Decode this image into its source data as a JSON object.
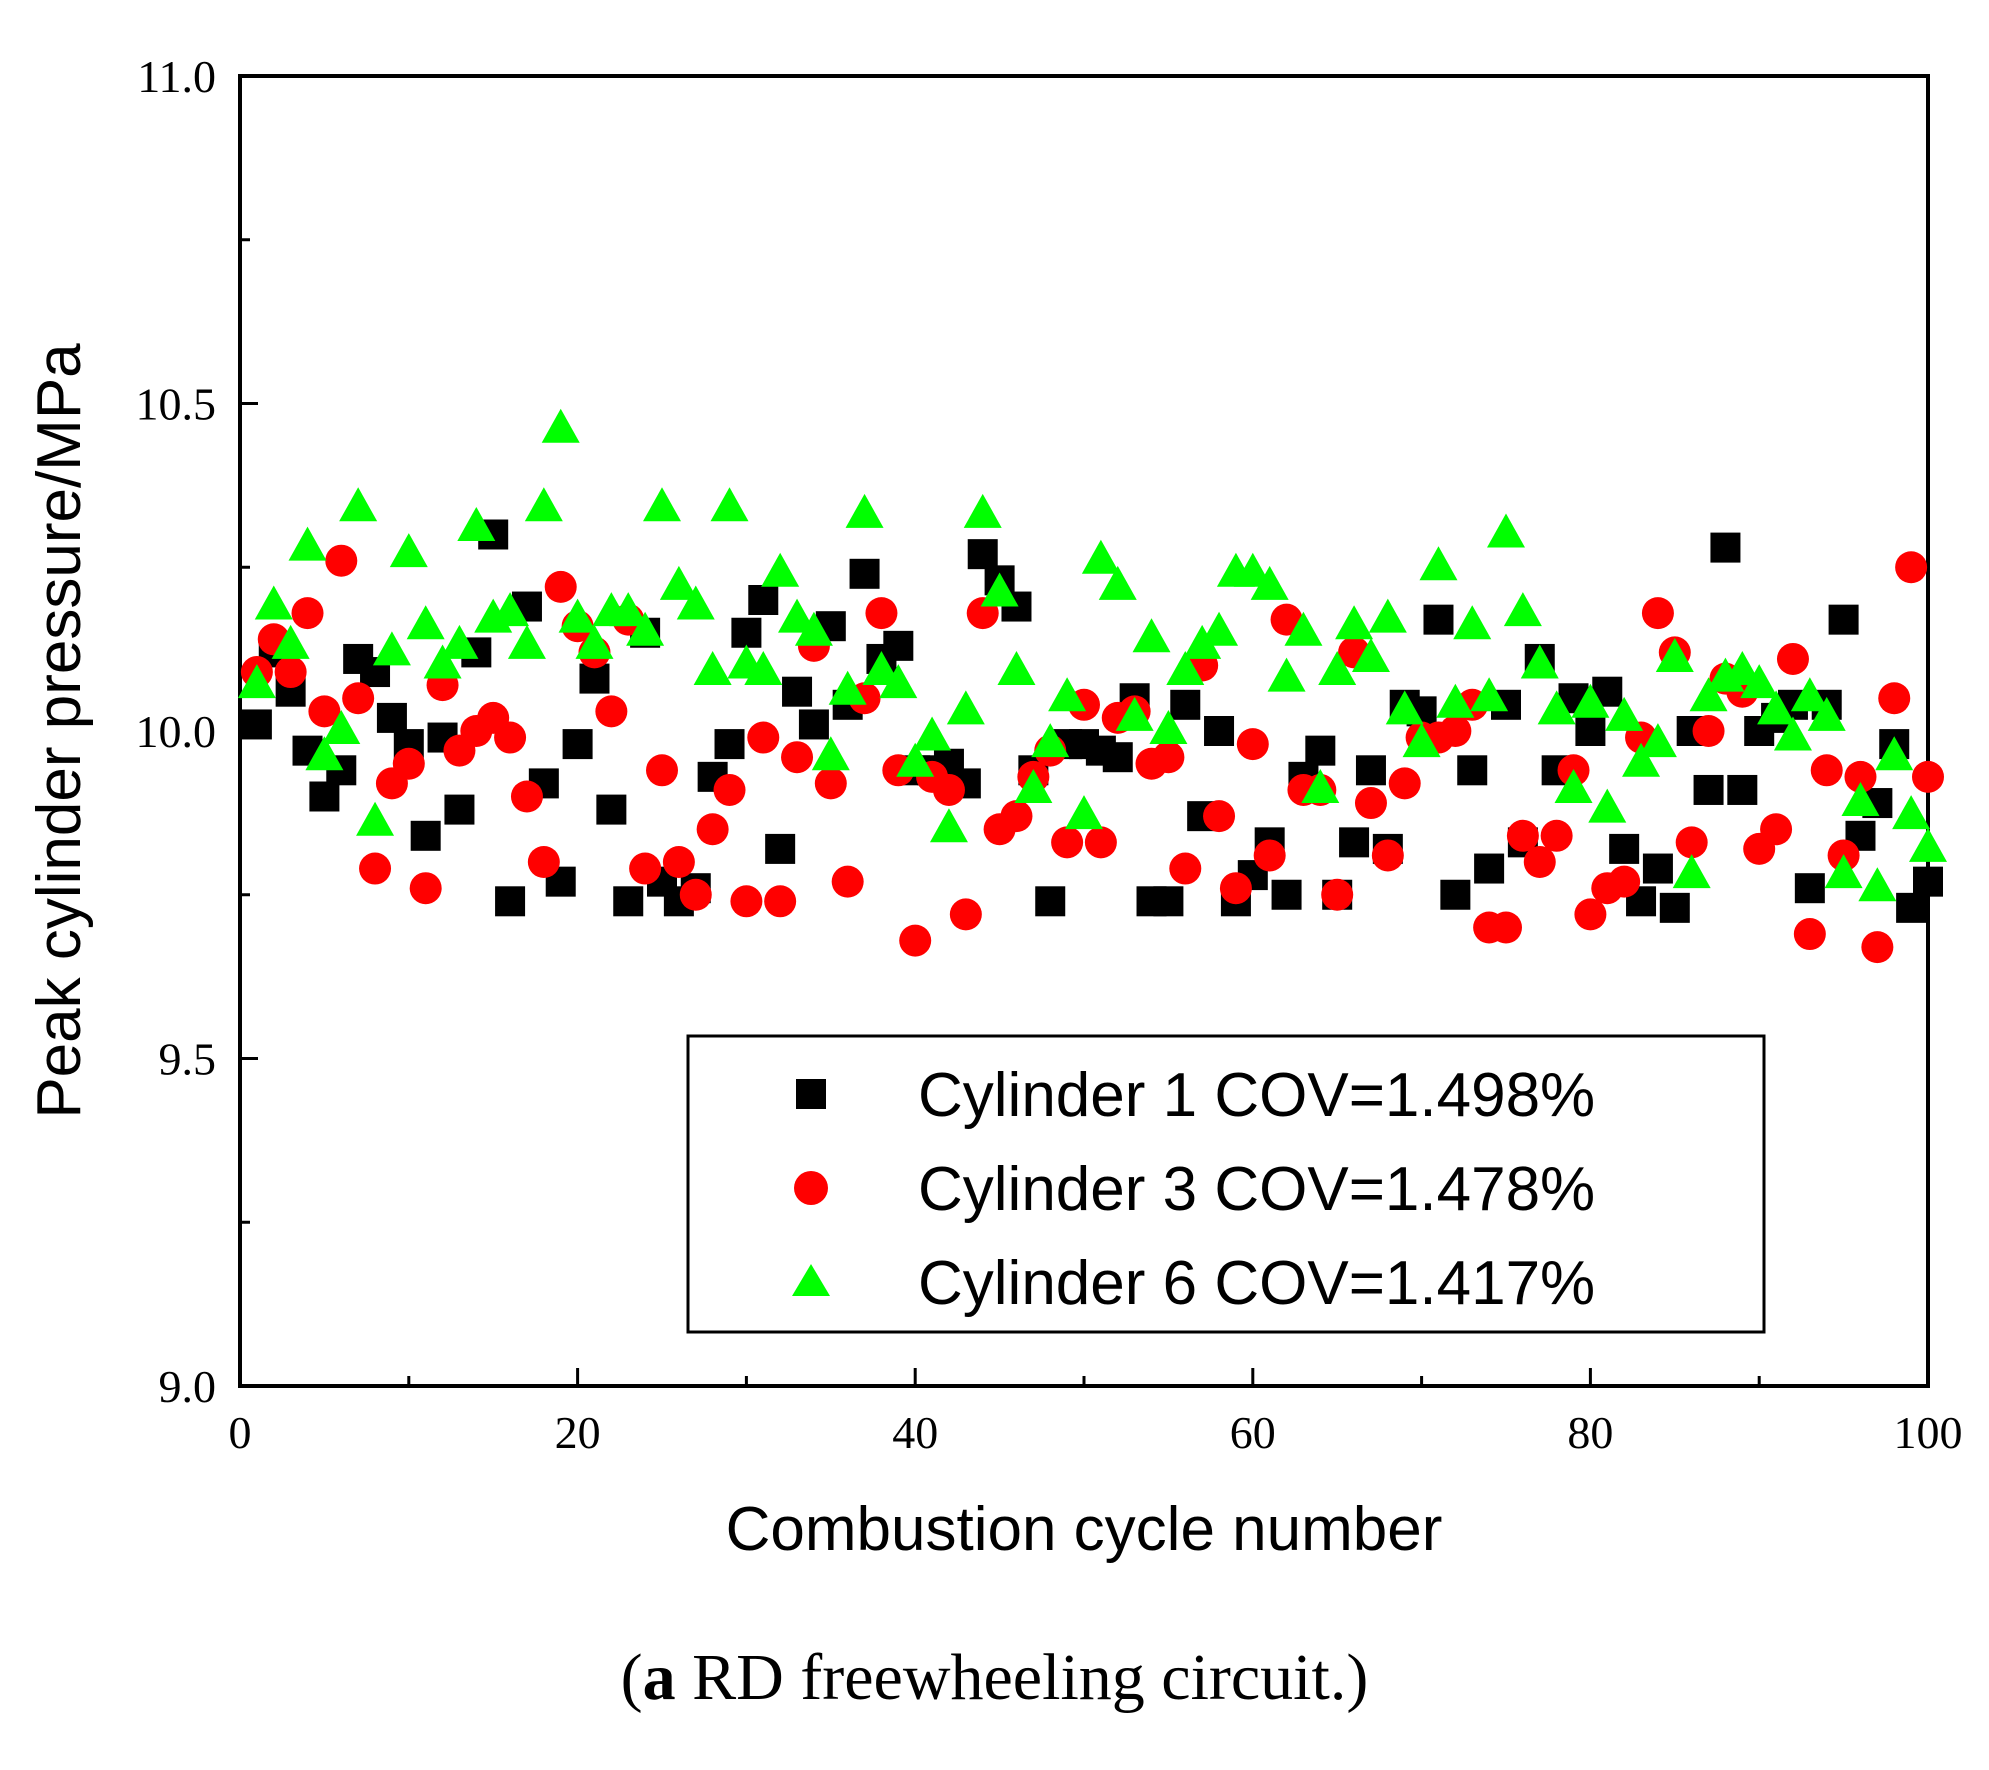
{
  "chart_data": {
    "type": "scatter",
    "title": "",
    "xlabel": "Combustion cycle number",
    "ylabel": "Peak cylinder pressure/MPa",
    "xlim": [
      0,
      100
    ],
    "ylim": [
      9.0,
      11.0
    ],
    "xticks": [
      0,
      20,
      40,
      60,
      80,
      100
    ],
    "xtick_labels": [
      "0",
      "20",
      "40",
      "60",
      "80",
      "100"
    ],
    "yticks": [
      9.0,
      9.5,
      10.0,
      10.5,
      11.0
    ],
    "ytick_labels": [
      "9.0",
      "9.5",
      "10.0",
      "10.5",
      "11.0"
    ],
    "grid": false,
    "legend_position": "bottom-right",
    "series": [
      {
        "name": "Cylinder 1 COV=1.498%",
        "marker": "square",
        "color": "#000000",
        "x": [
          1,
          2,
          3,
          4,
          5,
          6,
          7,
          8,
          9,
          10,
          11,
          12,
          13,
          14,
          15,
          16,
          17,
          18,
          19,
          20,
          21,
          22,
          23,
          24,
          25,
          26,
          27,
          28,
          29,
          30,
          31,
          32,
          33,
          34,
          35,
          36,
          37,
          38,
          39,
          40,
          41,
          42,
          43,
          44,
          45,
          46,
          47,
          48,
          49,
          50,
          51,
          52,
          53,
          54,
          55,
          56,
          57,
          58,
          59,
          60,
          61,
          62,
          63,
          64,
          65,
          66,
          67,
          68,
          69,
          70,
          71,
          72,
          73,
          74,
          75,
          76,
          77,
          78,
          79,
          80,
          81,
          82,
          83,
          84,
          85,
          86,
          87,
          88,
          89,
          90,
          91,
          92,
          93,
          94,
          95,
          96,
          97,
          98,
          99,
          100
        ],
        "y": [
          10.01,
          10.12,
          10.06,
          9.97,
          9.9,
          9.94,
          10.11,
          10.09,
          10.02,
          9.98,
          9.84,
          9.99,
          9.88,
          10.12,
          10.3,
          9.74,
          10.19,
          9.92,
          9.77,
          9.98,
          10.08,
          9.88,
          9.74,
          10.15,
          9.77,
          9.74,
          9.76,
          9.93,
          9.98,
          10.15,
          10.2,
          9.82,
          10.06,
          10.01,
          10.16,
          10.04,
          10.24,
          10.11,
          10.13,
          9.94,
          9.94,
          9.95,
          9.92,
          10.27,
          10.23,
          10.19,
          9.94,
          9.74,
          9.98,
          9.98,
          9.97,
          9.96,
          10.05,
          9.74,
          9.74,
          10.04,
          9.87,
          10.0,
          9.74,
          9.78,
          9.83,
          9.75,
          9.93,
          9.97,
          9.75,
          9.83,
          9.94,
          9.82,
          10.04,
          10.03,
          10.17,
          9.75,
          9.94,
          9.79,
          10.04,
          9.83,
          10.11,
          9.94,
          10.05,
          10.0,
          10.06,
          9.82,
          9.74,
          9.79,
          9.73,
          10.0,
          9.91,
          10.28,
          9.91,
          10.0,
          10.02,
          10.04,
          9.76,
          10.04,
          10.17,
          9.84,
          9.89,
          9.98,
          9.73,
          9.77
        ]
      },
      {
        "name": "Cylinder 3 COV=1.478%",
        "marker": "circle",
        "color": "#ff0000",
        "x": [
          1,
          2,
          3,
          4,
          5,
          6,
          7,
          8,
          9,
          10,
          11,
          12,
          13,
          14,
          15,
          16,
          17,
          18,
          19,
          20,
          21,
          22,
          23,
          24,
          25,
          26,
          27,
          28,
          29,
          30,
          31,
          32,
          33,
          34,
          35,
          36,
          37,
          38,
          39,
          40,
          41,
          42,
          43,
          44,
          45,
          46,
          47,
          48,
          49,
          50,
          51,
          52,
          53,
          54,
          55,
          56,
          57,
          58,
          59,
          60,
          61,
          62,
          63,
          64,
          65,
          66,
          67,
          68,
          69,
          70,
          71,
          72,
          73,
          74,
          75,
          76,
          77,
          78,
          79,
          80,
          81,
          82,
          83,
          84,
          85,
          86,
          87,
          88,
          89,
          90,
          91,
          92,
          93,
          94,
          95,
          96,
          97,
          98,
          99,
          100
        ],
        "y": [
          10.09,
          10.14,
          10.09,
          10.18,
          10.03,
          10.26,
          10.05,
          9.79,
          9.92,
          9.95,
          9.76,
          10.07,
          9.97,
          10.0,
          10.02,
          9.99,
          9.9,
          9.8,
          10.22,
          10.16,
          10.12,
          10.03,
          10.17,
          9.79,
          9.94,
          9.8,
          9.75,
          9.85,
          9.91,
          9.74,
          9.99,
          9.74,
          9.96,
          10.13,
          9.92,
          9.77,
          10.05,
          10.18,
          9.94,
          9.68,
          9.93,
          9.91,
          9.72,
          10.18,
          9.85,
          9.87,
          9.93,
          9.97,
          9.83,
          10.04,
          9.83,
          10.02,
          10.03,
          9.95,
          9.96,
          9.79,
          10.1,
          9.87,
          9.76,
          9.98,
          9.81,
          10.17,
          9.91,
          9.91,
          9.75,
          10.12,
          9.89,
          9.81,
          9.92,
          9.99,
          9.99,
          10.0,
          10.04,
          9.7,
          9.7,
          9.84,
          9.8,
          9.84,
          9.94,
          9.72,
          9.76,
          9.77,
          9.99,
          10.18,
          10.12,
          9.83,
          10.0,
          10.08,
          10.06,
          9.82,
          9.85,
          10.11,
          9.69,
          9.94,
          9.81,
          9.93,
          9.67,
          10.05,
          10.25,
          9.93
        ]
      },
      {
        "name": "Cylinder 6 COV=1.417%",
        "marker": "triangle",
        "color": "#00ff00",
        "x": [
          1,
          2,
          3,
          4,
          5,
          6,
          7,
          8,
          9,
          10,
          11,
          12,
          13,
          14,
          15,
          16,
          17,
          18,
          19,
          20,
          21,
          22,
          23,
          24,
          25,
          26,
          27,
          28,
          29,
          30,
          31,
          32,
          33,
          34,
          35,
          36,
          37,
          38,
          39,
          40,
          41,
          42,
          43,
          44,
          45,
          46,
          47,
          48,
          49,
          50,
          51,
          52,
          53,
          54,
          55,
          56,
          57,
          58,
          59,
          60,
          61,
          62,
          63,
          64,
          65,
          66,
          67,
          68,
          69,
          70,
          71,
          72,
          73,
          74,
          75,
          76,
          77,
          78,
          79,
          80,
          81,
          82,
          83,
          84,
          85,
          86,
          87,
          88,
          89,
          90,
          91,
          92,
          93,
          94,
          95,
          96,
          97,
          98,
          99,
          100
        ],
        "y": [
          10.07,
          10.19,
          10.13,
          10.28,
          9.96,
          10.0,
          10.34,
          9.86,
          10.12,
          10.27,
          10.16,
          10.1,
          10.13,
          10.31,
          10.17,
          10.18,
          10.13,
          10.34,
          10.46,
          10.17,
          10.13,
          10.18,
          10.18,
          10.15,
          10.34,
          10.22,
          10.19,
          10.09,
          10.34,
          10.1,
          10.09,
          10.24,
          10.17,
          10.15,
          9.96,
          10.06,
          10.33,
          10.09,
          10.07,
          9.95,
          9.99,
          9.85,
          10.03,
          10.33,
          10.21,
          10.09,
          9.91,
          9.98,
          10.05,
          9.87,
          10.26,
          10.22,
          10.02,
          10.14,
          10.0,
          10.09,
          10.13,
          10.15,
          10.24,
          10.24,
          10.22,
          10.08,
          10.15,
          9.91,
          10.09,
          10.16,
          10.11,
          10.17,
          10.03,
          9.98,
          10.25,
          10.04,
          10.16,
          10.05,
          10.3,
          10.18,
          10.1,
          10.03,
          9.91,
          10.04,
          9.88,
          10.02,
          9.95,
          9.98,
          10.11,
          9.78,
          10.05,
          10.08,
          10.09,
          10.07,
          10.03,
          9.99,
          10.05,
          10.02,
          9.78,
          9.89,
          9.76,
          9.96,
          9.87,
          9.82
        ]
      }
    ]
  },
  "caption": {
    "label": "a",
    "text": " RD freewheeling circuit."
  }
}
